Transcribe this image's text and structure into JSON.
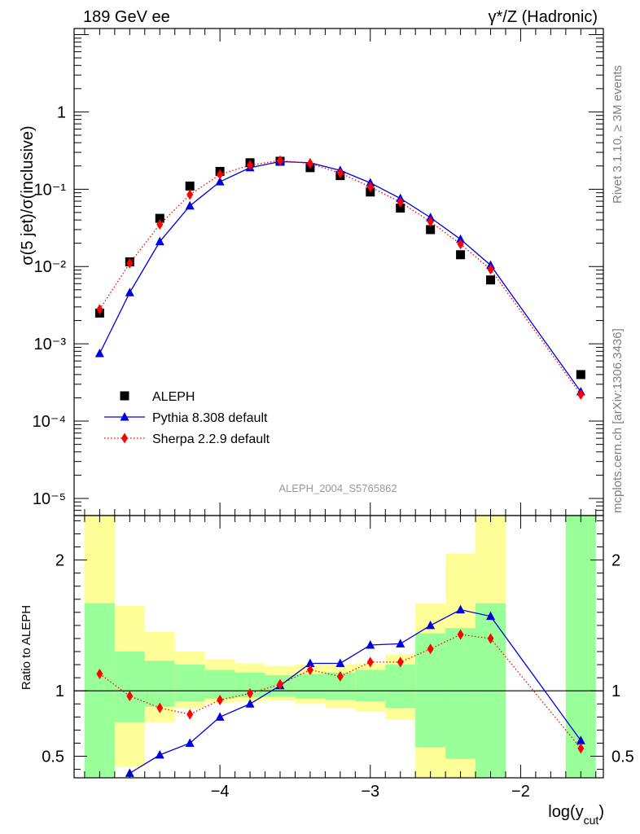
{
  "header": {
    "left": "189 GeV ee",
    "right": "γ*/Z (Hadronic)"
  },
  "side_labels": {
    "rivet": "Rivet 3.1.10, ≥ 3M events",
    "mcplots": "mcplots.cern.ch [arXiv:1306.3436]"
  },
  "watermark": "ALEPH_2004_S5765862",
  "chart_data": [
    {
      "type": "line",
      "ylabel": "σ(5 jet)/σ(inclusive)",
      "yscale": "log",
      "ylim": [
        6e-06,
        12
      ],
      "xlim": [
        -4.97,
        -1.45
      ],
      "ytick_labels": [
        "10⁻⁵",
        "10⁻⁴",
        "10⁻³",
        "10⁻²",
        "10⁻¹",
        "1"
      ],
      "legend_position": "bottom-left",
      "series": [
        {
          "name": "ALEPH",
          "style": "markers",
          "marker": "square",
          "color": "#000000",
          "x": [
            -4.8,
            -4.6,
            -4.4,
            -4.2,
            -4.0,
            -3.8,
            -3.6,
            -3.4,
            -3.2,
            -3.0,
            -2.8,
            -2.6,
            -2.4,
            -2.2,
            -1.6
          ],
          "y": [
            0.0025,
            0.0115,
            0.042,
            0.11,
            0.17,
            0.22,
            0.23,
            0.19,
            0.15,
            0.092,
            0.057,
            0.03,
            0.0142,
            0.0067,
            0.0004
          ]
        },
        {
          "name": "Pythia 8.308 default",
          "style": "solid",
          "marker": "triangle",
          "color": "#0000dd",
          "x": [
            -4.8,
            -4.6,
            -4.4,
            -4.2,
            -4.0,
            -3.8,
            -3.6,
            -3.4,
            -3.2,
            -3.0,
            -2.8,
            -2.6,
            -2.4,
            -2.2,
            -1.6
          ],
          "y": [
            0.00075,
            0.0046,
            0.021,
            0.061,
            0.125,
            0.19,
            0.228,
            0.22,
            0.175,
            0.121,
            0.076,
            0.043,
            0.0225,
            0.0104,
            0.00024
          ]
        },
        {
          "name": "Sherpa 2.2.9 default",
          "style": "dotted",
          "marker": "diamond",
          "color": "#ff0000",
          "x": [
            -4.8,
            -4.6,
            -4.4,
            -4.2,
            -4.0,
            -3.8,
            -3.6,
            -3.4,
            -3.2,
            -3.0,
            -2.8,
            -2.6,
            -2.4,
            -2.2,
            -1.6
          ],
          "y": [
            0.0028,
            0.011,
            0.035,
            0.085,
            0.155,
            0.205,
            0.235,
            0.215,
            0.162,
            0.107,
            0.068,
            0.038,
            0.0195,
            0.0092,
            0.00022
          ]
        }
      ]
    },
    {
      "type": "line",
      "ylabel": "Ratio to ALEPH",
      "xlabel": "log(y_cut)",
      "ylim": [
        0.335,
        2.34
      ],
      "xlim": [
        -4.97,
        -1.45
      ],
      "yticks": [
        0.5,
        1,
        2
      ],
      "ytick_labels": [
        "0.5",
        "1",
        "2"
      ],
      "xticks": [
        -4,
        -3,
        -2
      ],
      "xtick_labels": [
        "−4",
        "−3",
        "−2"
      ],
      "reference_line": 1,
      "bands": {
        "x_edges": [
          [
            -4.9,
            -4.7
          ],
          [
            -4.7,
            -4.5
          ],
          [
            -4.5,
            -4.3
          ],
          [
            -4.3,
            -4.1
          ],
          [
            -4.1,
            -3.9
          ],
          [
            -3.9,
            -3.7
          ],
          [
            -3.7,
            -3.5
          ],
          [
            -3.5,
            -3.3
          ],
          [
            -3.3,
            -3.1
          ],
          [
            -3.1,
            -2.9
          ],
          [
            -2.9,
            -2.7
          ],
          [
            -2.7,
            -2.5
          ],
          [
            -2.5,
            -2.3
          ],
          [
            -2.3,
            -2.1
          ],
          [
            -1.7,
            -1.5
          ]
        ],
        "yellow_low": [
          0.335,
          0.42,
          0.76,
          0.87,
          0.91,
          0.92,
          0.925,
          0.9,
          0.87,
          0.84,
          0.78,
          0.335,
          0.335,
          0.335,
          0.335
        ],
        "yellow_high": [
          2.34,
          1.65,
          1.45,
          1.3,
          1.24,
          1.21,
          1.19,
          1.2,
          1.2,
          1.21,
          1.28,
          1.67,
          2.05,
          2.34,
          2.34
        ],
        "green_low": [
          0.335,
          0.76,
          0.88,
          0.92,
          0.94,
          0.95,
          0.955,
          0.94,
          0.93,
          0.92,
          0.87,
          0.57,
          0.48,
          0.335,
          0.335
        ],
        "green_high": [
          1.67,
          1.3,
          1.23,
          1.2,
          1.16,
          1.14,
          1.12,
          1.13,
          1.14,
          1.16,
          1.2,
          1.44,
          1.48,
          1.67,
          2.34
        ]
      },
      "series": [
        {
          "name": "Pythia 8.308 default",
          "color": "#0000dd",
          "x": [
            -4.6,
            -4.4,
            -4.2,
            -4.0,
            -3.8,
            -3.6,
            -3.4,
            -3.2,
            -3.0,
            -2.8,
            -2.6,
            -2.4,
            -2.2,
            -1.6
          ],
          "y": [
            0.37,
            0.51,
            0.6,
            0.8,
            0.9,
            1.04,
            1.21,
            1.21,
            1.35,
            1.36,
            1.5,
            1.62,
            1.57,
            0.62
          ]
        },
        {
          "name": "Sherpa 2.2.9 default",
          "color": "#ff0000",
          "x": [
            -4.8,
            -4.6,
            -4.4,
            -4.2,
            -4.0,
            -3.8,
            -3.6,
            -3.4,
            -3.2,
            -3.0,
            -2.8,
            -2.6,
            -2.4,
            -2.2,
            -1.6
          ],
          "y": [
            1.13,
            0.96,
            0.87,
            0.82,
            0.93,
            0.98,
            1.05,
            1.16,
            1.11,
            1.22,
            1.22,
            1.32,
            1.43,
            1.4,
            0.56
          ]
        }
      ]
    }
  ]
}
